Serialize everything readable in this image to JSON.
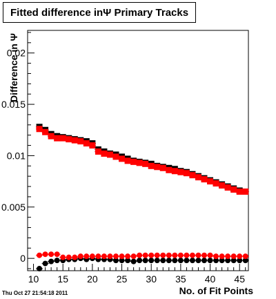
{
  "title": {
    "text": "Fitted difference inΨ  Primary Tracks"
  },
  "ylabel": "Difference in Ψ",
  "xlabel": "No. of Fit Points",
  "timestamp": "Thu Oct 27 21:54:18 2011",
  "colors": {
    "series1": "#ff0000",
    "series2": "#000000"
  },
  "chart_data": {
    "type": "scatter",
    "title": "Fitted difference inΨ  Primary Tracks",
    "xlabel": "No. of Fit Points",
    "ylabel": "Difference in Ψ",
    "xlim": [
      9,
      46.5
    ],
    "ylim": [
      -0.0012,
      0.0222
    ],
    "xticks": [
      10,
      15,
      20,
      25,
      30,
      35,
      40,
      45
    ],
    "yticks": [
      0,
      0.005,
      0.01,
      0.015,
      0.02
    ],
    "ytick_labels": [
      "0",
      "0.005",
      "0.01",
      "0.015",
      "0.02"
    ],
    "x": [
      11,
      12,
      13,
      14,
      15,
      16,
      17,
      18,
      19,
      20,
      21,
      22,
      23,
      24,
      25,
      26,
      27,
      28,
      29,
      30,
      31,
      32,
      33,
      34,
      35,
      36,
      37,
      38,
      39,
      40,
      41,
      42,
      43,
      44,
      45,
      46
    ],
    "series": [
      {
        "name": "",
        "marker": "square",
        "color": "#000000",
        "values": [
          0.0128,
          0.0125,
          0.0121,
          0.0119,
          0.0118,
          0.0117,
          0.0116,
          0.0115,
          0.0114,
          0.0112,
          0.0106,
          0.0104,
          0.0102,
          0.0101,
          0.0099,
          0.0097,
          0.0095,
          0.0094,
          0.0093,
          0.0092,
          0.009,
          0.0089,
          0.0088,
          0.0087,
          0.0085,
          0.0084,
          0.0082,
          0.008,
          0.0078,
          0.0076,
          0.0074,
          0.0072,
          0.007,
          0.0068,
          0.0066,
          0.0065
        ]
      },
      {
        "name": "",
        "marker": "square",
        "color": "#ff0000",
        "values": [
          0.0126,
          0.0123,
          0.0119,
          0.0117,
          0.0117,
          0.0116,
          0.0115,
          0.0114,
          0.0112,
          0.011,
          0.0104,
          0.0102,
          0.0101,
          0.0099,
          0.0097,
          0.0095,
          0.0094,
          0.0093,
          0.0092,
          0.009,
          0.0089,
          0.0088,
          0.0086,
          0.0085,
          0.0084,
          0.0083,
          0.0081,
          0.0079,
          0.0077,
          0.0075,
          0.0073,
          0.0071,
          0.0069,
          0.0067,
          0.0065,
          0.0065
        ]
      },
      {
        "name": "",
        "marker": "circle",
        "color": "#000000",
        "values": [
          -0.001,
          -0.0005,
          -0.0003,
          -0.0002,
          -0.0002,
          -0.0001,
          -0.0001,
          0.0,
          -0.0001,
          0.0,
          -0.0001,
          -0.0001,
          -0.0001,
          -0.0002,
          -0.0002,
          -0.0002,
          -0.0003,
          -0.0002,
          -0.0002,
          -0.0002,
          -0.0002,
          -0.0002,
          -0.0002,
          -0.0002,
          -0.0002,
          -0.0002,
          -0.0002,
          -0.0002,
          -0.0002,
          -0.0002,
          -0.0002,
          -0.0002,
          -0.0002,
          -0.0002,
          -0.0002,
          -0.0002
        ]
      },
      {
        "name": "",
        "marker": "circle",
        "color": "#ff0000",
        "values": [
          0.0003,
          0.0004,
          0.0004,
          0.0004,
          0.0001,
          0.0001,
          0.0001,
          0.0002,
          0.0002,
          0.0002,
          0.0002,
          0.0002,
          0.0002,
          0.0002,
          0.0002,
          0.0002,
          0.0002,
          0.0003,
          0.0003,
          0.0003,
          0.0003,
          0.0003,
          0.0003,
          0.0003,
          0.0003,
          0.0003,
          0.0003,
          0.0003,
          0.0003,
          0.0003,
          0.0002,
          0.0002,
          0.0002,
          0.0002,
          0.0002,
          0.0002
        ]
      }
    ]
  }
}
